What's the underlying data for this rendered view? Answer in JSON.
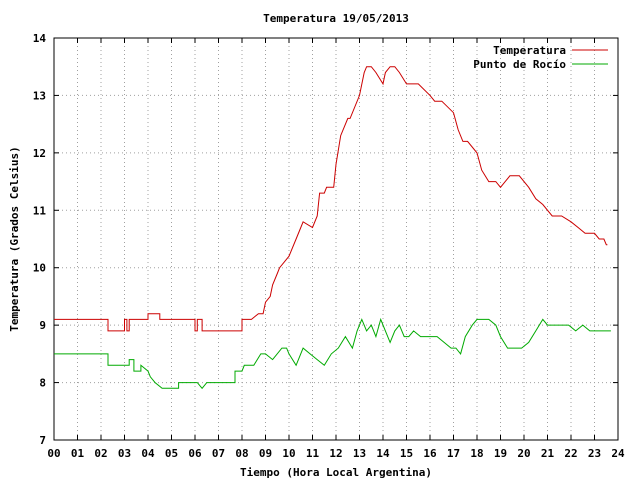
{
  "chart_data": {
    "type": "line",
    "title": "Temperatura 19/05/2013",
    "xlabel": "Tiempo (Hora Local Argentina)",
    "ylabel": "Temperatura (Grados Celsius)",
    "xlim": [
      0,
      24
    ],
    "ylim": [
      7,
      14
    ],
    "grid": true,
    "legend_position": "top-right",
    "x_ticks": [
      "00",
      "01",
      "02",
      "03",
      "04",
      "05",
      "06",
      "07",
      "08",
      "09",
      "10",
      "11",
      "12",
      "13",
      "14",
      "15",
      "16",
      "17",
      "18",
      "19",
      "20",
      "21",
      "22",
      "23",
      "24"
    ],
    "y_ticks": [
      7,
      8,
      9,
      10,
      11,
      12,
      13,
      14
    ],
    "series": [
      {
        "name": "Temperatura",
        "color": "#cc0000",
        "x": [
          0,
          2.3,
          2.3,
          3.0,
          3.0,
          3.1,
          3.1,
          3.2,
          3.2,
          4.0,
          4.0,
          4.5,
          4.5,
          4.7,
          4.7,
          6.0,
          6.0,
          6.1,
          6.1,
          6.3,
          6.3,
          8.0,
          8.0,
          8.4,
          8.7,
          8.9,
          9.0,
          9.2,
          9.3,
          9.5,
          9.6,
          10.0,
          10.3,
          10.5,
          10.6,
          11.0,
          11.2,
          11.3,
          11.4,
          11.5,
          11.6,
          11.9,
          12.0,
          12.2,
          12.5,
          12.6,
          13.0,
          13.2,
          13.3,
          13.5,
          13.7,
          14.0,
          14.1,
          14.3,
          14.5,
          14.7,
          15.0,
          15.2,
          15.5,
          16.0,
          16.2,
          16.5,
          17.0,
          17.2,
          17.4,
          17.6,
          18.0,
          18.2,
          18.5,
          18.8,
          19.0,
          19.2,
          19.4,
          19.8,
          20.2,
          20.5,
          20.8,
          21.2,
          21.6,
          22.0,
          22.3,
          22.6,
          23.0,
          23.2,
          23.4,
          23.5,
          23.55
        ],
        "values": [
          9.1,
          9.1,
          8.9,
          8.9,
          9.1,
          9.1,
          8.9,
          8.9,
          9.1,
          9.1,
          9.2,
          9.2,
          9.1,
          9.1,
          9.1,
          9.1,
          8.9,
          8.9,
          9.1,
          9.1,
          8.9,
          8.9,
          9.1,
          9.1,
          9.2,
          9.2,
          9.4,
          9.5,
          9.7,
          9.9,
          10.0,
          10.2,
          10.5,
          10.7,
          10.8,
          10.7,
          10.9,
          11.3,
          11.3,
          11.3,
          11.4,
          11.4,
          11.8,
          12.3,
          12.6,
          12.6,
          13.0,
          13.4,
          13.5,
          13.5,
          13.4,
          13.2,
          13.4,
          13.5,
          13.5,
          13.4,
          13.2,
          13.2,
          13.2,
          13.0,
          12.9,
          12.9,
          12.7,
          12.4,
          12.2,
          12.2,
          12.0,
          11.7,
          11.5,
          11.5,
          11.4,
          11.5,
          11.6,
          11.6,
          11.4,
          11.2,
          11.1,
          10.9,
          10.9,
          10.8,
          10.7,
          10.6,
          10.6,
          10.5,
          10.5,
          10.4,
          10.4
        ]
      },
      {
        "name": "Punto de Rocío",
        "color": "#00aa00",
        "x": [
          0,
          2.3,
          2.3,
          3.2,
          3.2,
          3.4,
          3.4,
          3.7,
          3.7,
          4.0,
          4.1,
          4.3,
          4.3,
          4.6,
          4.6,
          5.3,
          5.3,
          6.1,
          6.3,
          6.5,
          6.5,
          7.7,
          7.7,
          8.0,
          8.1,
          8.5,
          8.8,
          9.0,
          9.3,
          9.7,
          9.9,
          10.0,
          10.3,
          10.6,
          10.9,
          11.2,
          11.5,
          11.8,
          12.1,
          12.4,
          12.7,
          12.9,
          13.1,
          13.3,
          13.5,
          13.7,
          13.9,
          14.1,
          14.3,
          14.5,
          14.7,
          14.9,
          15.1,
          15.3,
          15.6,
          16.0,
          16.3,
          16.6,
          16.9,
          17.1,
          17.3,
          17.5,
          17.8,
          18.0,
          18.2,
          18.5,
          18.8,
          19.0,
          19.3,
          19.6,
          19.9,
          20.2,
          20.5,
          20.8,
          21.0,
          21.3,
          21.6,
          21.9,
          22.2,
          22.5,
          22.8,
          23.1,
          23.4,
          23.7
        ],
        "values": [
          8.5,
          8.5,
          8.3,
          8.3,
          8.4,
          8.4,
          8.2,
          8.2,
          8.3,
          8.2,
          8.1,
          8.0,
          8.0,
          7.9,
          7.9,
          7.9,
          8.0,
          8.0,
          7.9,
          8.0,
          8.0,
          8.0,
          8.2,
          8.2,
          8.3,
          8.3,
          8.5,
          8.5,
          8.4,
          8.6,
          8.6,
          8.5,
          8.3,
          8.6,
          8.5,
          8.4,
          8.3,
          8.5,
          8.6,
          8.8,
          8.6,
          8.9,
          9.1,
          8.9,
          9.0,
          8.8,
          9.1,
          8.9,
          8.7,
          8.9,
          9.0,
          8.8,
          8.8,
          8.9,
          8.8,
          8.8,
          8.8,
          8.7,
          8.6,
          8.6,
          8.5,
          8.8,
          9.0,
          9.1,
          9.1,
          9.1,
          9.0,
          8.8,
          8.6,
          8.6,
          8.6,
          8.7,
          8.9,
          9.1,
          9.0,
          9.0,
          9.0,
          9.0,
          8.9,
          9.0,
          8.9,
          8.9,
          8.9,
          8.9
        ]
      }
    ]
  }
}
